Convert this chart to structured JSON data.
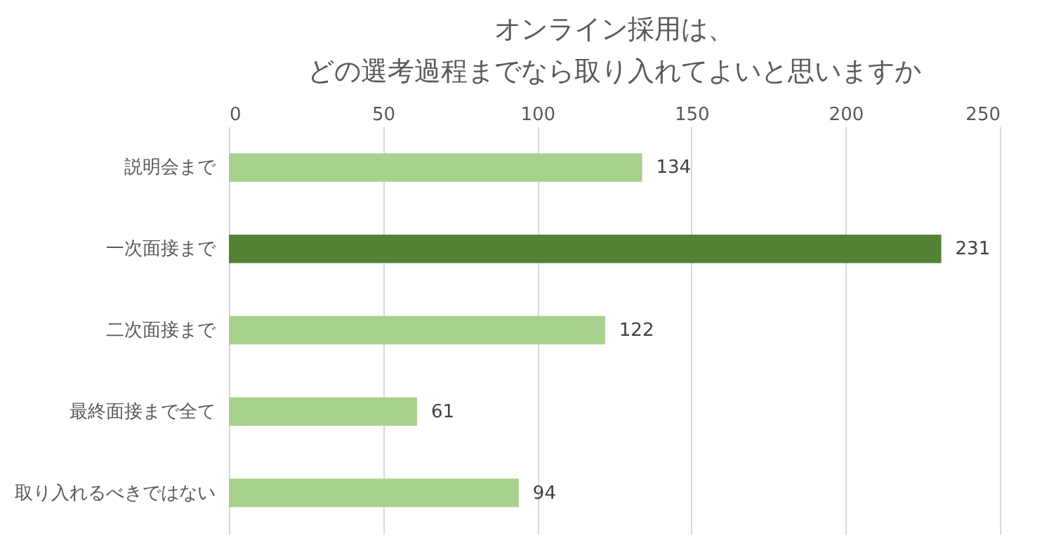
{
  "chart_data": {
    "type": "bar",
    "orientation": "horizontal",
    "title": [
      "オンライン採用は、",
      "どの選考過程までなら取り入れてよいと思いますか"
    ],
    "categories": [
      "説明会まで",
      "一次面接まで",
      "二次面接まで",
      "最終面接まで全て",
      "取り入れるべきではない"
    ],
    "values": [
      134,
      231,
      122,
      61,
      94
    ],
    "colors": [
      "#a9d18e",
      "#548235",
      "#a9d18e",
      "#a9d18e",
      "#a9d18e"
    ],
    "xlim": [
      0,
      250
    ],
    "xticks": [
      0,
      50,
      100,
      150,
      200,
      250
    ],
    "grid": "x",
    "data_labels": true
  }
}
